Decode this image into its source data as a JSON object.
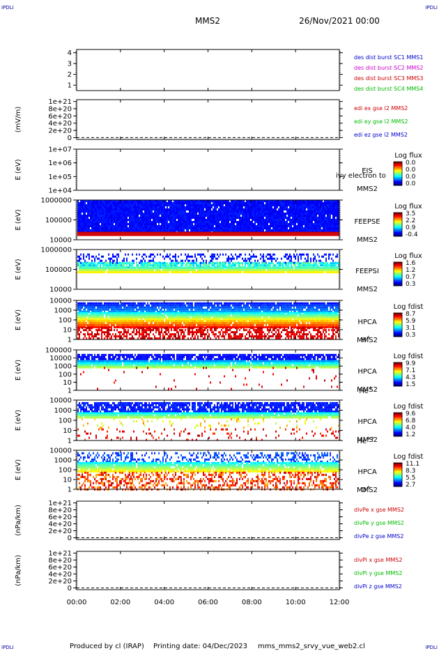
{
  "header": {
    "corner_left_top": "IPDLI",
    "corner_right_top": "IPDLI",
    "corner_left_bottom": "IPDLI",
    "corner_right_bottom": "IPDLI",
    "spacecraft": "MMS2",
    "date": "26/Nov/2021 00:00"
  },
  "footer": {
    "produced_by": "Produced by cl (IRAP)",
    "printing_date": "Printing date: 04/Dec/2023",
    "filename": "mms_mms2_srvy_vue_web2.cl"
  },
  "chart_data": {
    "type": "multi-panel time series / spectrogram",
    "x_ticks": [
      "00:00",
      "02:00",
      "04:00",
      "06:00",
      "08:00",
      "10:00",
      "12:00"
    ],
    "colors": {
      "blue": "#0000cc",
      "magenta": "#cc00cc",
      "red": "#cc0000",
      "green": "#00bb00"
    },
    "panels": [
      {
        "id": "dist_burst",
        "kind": "line",
        "ylabel": "",
        "yticks": [
          "4",
          "3",
          "2",
          "1"
        ],
        "ylim": [
          0.5,
          4.3
        ],
        "legend": [
          {
            "text": "des dist burst SC1 MMS1",
            "color": "#0000cc"
          },
          {
            "text": "des dist burst SC2 MMS2",
            "color": "#cc00cc"
          },
          {
            "text": "des dist burst SC3 MMS3",
            "color": "#cc0000"
          },
          {
            "text": "des dist burst SC4 MMS4",
            "color": "#00bb00"
          }
        ]
      },
      {
        "id": "edi_e",
        "kind": "line",
        "ylabel": "(mV/m)",
        "yticks": [
          "1e+21",
          "8e+20",
          "6e+20",
          "4e+20",
          "2e+20",
          "0"
        ],
        "ylim": [
          -5e+19,
          1.05e+21
        ],
        "zero_line": true,
        "legend": [
          {
            "text": "edi ex gse l2 MMS2",
            "color": "#cc0000"
          },
          {
            "text": "edi ey gse l2 MMS2",
            "color": "#00bb00"
          },
          {
            "text": "edi ez gse l2 MMS2",
            "color": "#0000cc"
          }
        ]
      },
      {
        "id": "eis",
        "kind": "spectrogram",
        "ylabel": "E (eV)",
        "yticks": [
          "1e+07",
          "1e+06",
          "1e+05",
          "1e+04"
        ],
        "instrument": [
          "EIS",
          "MMS2"
        ],
        "overlay_text": "ivy electron to",
        "colorbar_title": "Log flux",
        "colorbar_ticks": [
          "0.0",
          "0.0",
          "0.0",
          "0.0"
        ],
        "data": "empty"
      },
      {
        "id": "feepse",
        "kind": "spectrogram",
        "ylabel": "E (eV)",
        "yticks": [
          "1000000",
          "100000",
          "10000"
        ],
        "instrument": [
          "FEEPSE",
          "MMS2"
        ],
        "colorbar_title": "Log flux",
        "colorbar_ticks": [
          "3.5",
          "2.2",
          "0.9",
          "-0.4"
        ],
        "data": "blue background, dense, red band at the lowest energies"
      },
      {
        "id": "feepsi",
        "kind": "spectrogram",
        "ylabel": "E (eV)",
        "yticks": [
          "1000000",
          "100000",
          "10000"
        ],
        "instrument": [
          "FEEPSI",
          "MMS2"
        ],
        "colorbar_title": "Log flux",
        "colorbar_ticks": [
          "1.6",
          "1.2",
          "0.7",
          "0.3"
        ],
        "data": "sparse blue upper, cyan/green/yellow band near 1e5 eV"
      },
      {
        "id": "hpca_h",
        "kind": "spectrogram",
        "ylabel": "E (eV)",
        "yticks": [
          "10000",
          "1000",
          "100",
          "10",
          "1"
        ],
        "instrument": [
          "HPCA",
          "MMS2"
        ],
        "species": "H",
        "species_sup": "+",
        "colorbar_title": "Log fdist",
        "colorbar_ticks": [
          "8.7",
          "5.9",
          "3.1",
          "0.3"
        ],
        "data": "blue high, green, yellow, red low energies"
      },
      {
        "id": "hpca_he",
        "kind": "spectrogram",
        "ylabel": "E (eV)",
        "yticks": [
          "100000",
          "10000",
          "1000",
          "100",
          "10",
          "1"
        ],
        "instrument": [
          "HPCA",
          "MMS2"
        ],
        "species": "He",
        "species_sup": "+",
        "colorbar_title": "Log fdist",
        "colorbar_ticks": [
          "9.9",
          "7.1",
          "4.3",
          "1.5"
        ],
        "data": "blue/green band near 1e3-1e4 eV, sparse below"
      },
      {
        "id": "hpca_hepp",
        "kind": "spectrogram",
        "ylabel": "E (eV)",
        "yticks": [
          "10000",
          "1000",
          "100",
          "10",
          "1"
        ],
        "instrument": [
          "HPCA",
          "MMS2"
        ],
        "species": "He",
        "species_sup": "++",
        "colorbar_title": "Log fdist",
        "colorbar_ticks": [
          "9.6",
          "6.8",
          "4.0",
          "1.2"
        ],
        "data": "blue high, green mid, sparse yellow/red low"
      },
      {
        "id": "hpca_o",
        "kind": "spectrogram",
        "ylabel": "E (eV)",
        "yticks": [
          "10000",
          "1000",
          "100",
          "10",
          "1"
        ],
        "instrument": [
          "HPCA",
          "MMS2"
        ],
        "species": "O",
        "species_sup": "+",
        "colorbar_title": "Log fdist",
        "colorbar_ticks": [
          "11.1",
          "8.3",
          "5.5",
          "2.7"
        ],
        "data": "sparse blue high, green/yellow band, orange/red low"
      },
      {
        "id": "divpe",
        "kind": "line",
        "ylabel": "(nPa/km)",
        "yticks": [
          "1e+21",
          "8e+20",
          "6e+20",
          "4e+20",
          "2e+20",
          "0"
        ],
        "ylim": [
          -5e+19,
          1.05e+21
        ],
        "zero_line": true,
        "legend": [
          {
            "text": "divPe x gse MMS2",
            "color": "#cc0000"
          },
          {
            "text": "divPe y gse MMS2",
            "color": "#00bb00"
          },
          {
            "text": "divPe z gse MMS2",
            "color": "#0000cc"
          }
        ]
      },
      {
        "id": "divpi",
        "kind": "line",
        "ylabel": "(nPa/km)",
        "yticks": [
          "1e+21",
          "8e+20",
          "6e+20",
          "4e+20",
          "2e+20",
          "0"
        ],
        "ylim": [
          -5e+19,
          1.05e+21
        ],
        "zero_line": true,
        "legend": [
          {
            "text": "divPi x gse MMS2",
            "color": "#cc0000"
          },
          {
            "text": "divPi y gse MMS2",
            "color": "#00bb00"
          },
          {
            "text": "divPi z gse MMS2",
            "color": "#0000cc"
          }
        ]
      }
    ]
  }
}
